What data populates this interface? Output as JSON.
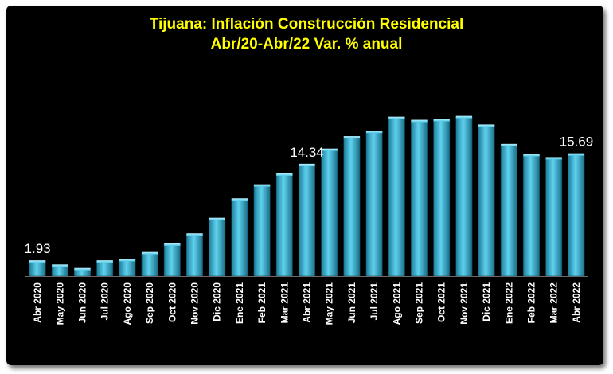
{
  "chart_data": {
    "type": "bar",
    "title_line1": "Tijuana: Inflación Construcción Residencial",
    "title_line2": "Abr/20-Abr/22 Var. % anual",
    "categories": [
      "Abr 2020",
      "May 2020",
      "Jun 2020",
      "Jul 2020",
      "Ago 2020",
      "Sep 2020",
      "Oct 2020",
      "Nov 2020",
      "Dic 2020",
      "Ene 2021",
      "Feb 2021",
      "Mar 2021",
      "Abr 2021",
      "May 2021",
      "Jun 2021",
      "Jul 2021",
      "Ago 2021",
      "Sep 2021",
      "Oct 2021",
      "Nov 2021",
      "Dic 2021",
      "Ene 2022",
      "Feb 2022",
      "Mar 2022",
      "Abr 2022"
    ],
    "values": [
      1.93,
      1.4,
      0.95,
      1.93,
      2.1,
      3.0,
      4.1,
      5.4,
      7.4,
      9.9,
      11.7,
      13.1,
      14.34,
      16.3,
      17.9,
      18.6,
      20.4,
      20.0,
      20.1,
      20.5,
      19.4,
      16.9,
      15.6,
      15.2,
      15.69
    ],
    "data_labels": [
      {
        "index": 0,
        "text": "1.93"
      },
      {
        "index": 12,
        "text": "14.34"
      },
      {
        "index": 24,
        "text": "15.69"
      }
    ],
    "ylim": [
      0,
      22
    ],
    "xlabel": "",
    "ylabel": "",
    "bar_color": "#3cb8d8",
    "label_color": "#ffffff",
    "title_color": "#ffff00",
    "background": "#000000"
  }
}
